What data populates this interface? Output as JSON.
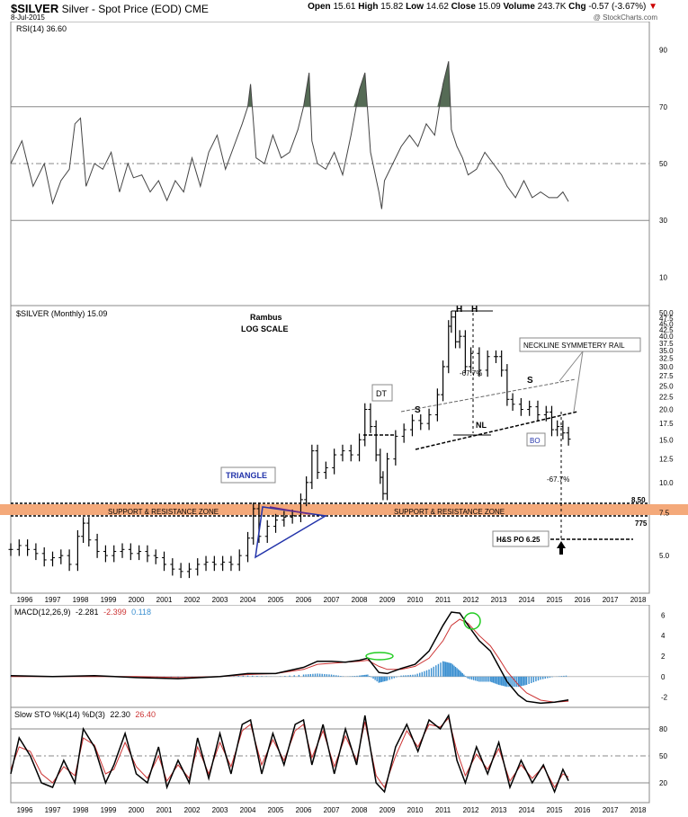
{
  "header": {
    "symbol": "$SILVER",
    "description": "Silver - Spot Price (EOD)",
    "exchange": "CME",
    "date": "8-Jul-2015",
    "open_label": "Open",
    "open": "15.61",
    "high_label": "High",
    "high": "15.82",
    "low_label": "Low",
    "low": "14.62",
    "close_label": "Close",
    "close": "15.09",
    "volume_label": "Volume",
    "volume": "243.7K",
    "chg_label": "Chg",
    "chg": "-0.57 (-3.67%)",
    "chg_arrow": "▼",
    "credit": "@ StockCharts.com"
  },
  "chart_data": [
    {
      "type": "line",
      "title": "RSI(14) 36.60",
      "ylim": [
        0,
        100
      ],
      "yticks": [
        10,
        30,
        50,
        70,
        90
      ],
      "reference_lines": [
        30,
        50,
        70
      ],
      "overbought_fill_color": "#556b55",
      "x": [
        1995.5,
        1995.9,
        1996.3,
        1996.7,
        1997.0,
        1997.3,
        1997.6,
        1997.8,
        1998.0,
        1998.2,
        1998.5,
        1998.8,
        1999.1,
        1999.4,
        1999.7,
        1999.9,
        2000.2,
        2000.5,
        2000.8,
        2001.1,
        2001.4,
        2001.7,
        2002.0,
        2002.3,
        2002.6,
        2002.9,
        2003.2,
        2003.5,
        2003.8,
        2004.0,
        2004.1,
        2004.3,
        2004.6,
        2004.9,
        2005.2,
        2005.5,
        2005.8,
        2006.0,
        2006.2,
        2006.3,
        2006.5,
        2006.8,
        2007.1,
        2007.4,
        2007.7,
        2008.0,
        2008.2,
        2008.4,
        2008.7,
        2008.8,
        2008.9,
        2009.2,
        2009.5,
        2009.8,
        2010.1,
        2010.4,
        2010.7,
        2011.0,
        2011.2,
        2011.3,
        2011.5,
        2011.7,
        2011.9,
        2012.2,
        2012.5,
        2012.8,
        2013.1,
        2013.3,
        2013.6,
        2013.9,
        2014.2,
        2014.5,
        2014.8,
        2015.1,
        2015.3,
        2015.5
      ],
      "values": [
        50,
        58,
        42,
        50,
        36,
        44,
        48,
        64,
        66,
        42,
        50,
        48,
        54,
        40,
        50,
        45,
        46,
        40,
        44,
        37,
        44,
        40,
        52,
        42,
        54,
        60,
        48,
        56,
        64,
        70,
        78,
        52,
        50,
        60,
        52,
        54,
        62,
        70,
        82,
        58,
        50,
        48,
        54,
        46,
        60,
        76,
        82,
        54,
        40,
        34,
        44,
        50,
        56,
        60,
        56,
        64,
        60,
        78,
        86,
        62,
        56,
        52,
        46,
        48,
        54,
        50,
        46,
        42,
        38,
        44,
        38,
        40,
        38,
        38,
        40,
        36.6
      ]
    },
    {
      "type": "line",
      "title": "$SILVER (Monthly) 15.09",
      "scale": "log",
      "ylim": [
        3.5,
        50
      ],
      "yticks": [
        5.0,
        7.5,
        10.0,
        12.5,
        15.0,
        17.5,
        20.0,
        22.5,
        25.0,
        27.5,
        30.0,
        32.5,
        35.0,
        37.5,
        40.0,
        42.5,
        45.0,
        47.5,
        50.0
      ],
      "xticks": [
        1996,
        1997,
        1998,
        1999,
        2000,
        2001,
        2002,
        2003,
        2004,
        2005,
        2006,
        2007,
        2008,
        2009,
        2010,
        2011,
        2012,
        2013,
        2014,
        2015,
        2016,
        2017,
        2018
      ],
      "x": [
        1995.5,
        1995.8,
        1996.1,
        1996.4,
        1996.7,
        1997.0,
        1997.3,
        1997.6,
        1997.9,
        1998.1,
        1998.3,
        1998.6,
        1998.9,
        1999.2,
        1999.5,
        1999.8,
        2000.1,
        2000.4,
        2000.7,
        2001.0,
        2001.3,
        2001.6,
        2001.9,
        2002.2,
        2002.5,
        2002.8,
        2003.1,
        2003.4,
        2003.7,
        2004.0,
        2004.2,
        2004.4,
        2004.7,
        2005.0,
        2005.3,
        2005.6,
        2005.9,
        2006.1,
        2006.3,
        2006.5,
        2006.8,
        2007.1,
        2007.4,
        2007.7,
        2008.0,
        2008.2,
        2008.4,
        2008.6,
        2008.75,
        2008.85,
        2009.0,
        2009.3,
        2009.6,
        2009.9,
        2010.2,
        2010.5,
        2010.8,
        2011.0,
        2011.2,
        2011.3,
        2011.45,
        2011.6,
        2011.8,
        2012.0,
        2012.3,
        2012.6,
        2012.9,
        2013.1,
        2013.3,
        2013.5,
        2013.8,
        2014.1,
        2014.4,
        2014.7,
        2014.9,
        2015.1,
        2015.3,
        2015.5
      ],
      "values": [
        5.3,
        5.5,
        5.3,
        5.1,
        4.8,
        4.9,
        5.0,
        4.6,
        6.0,
        6.8,
        5.8,
        5.2,
        5.0,
        5.2,
        5.3,
        5.1,
        5.2,
        5.0,
        4.9,
        4.6,
        4.4,
        4.3,
        4.4,
        4.6,
        4.7,
        4.6,
        4.7,
        4.6,
        5.0,
        5.9,
        7.8,
        6.0,
        6.6,
        7.0,
        7.2,
        7.3,
        8.5,
        10.0,
        13.5,
        11.0,
        11.5,
        13.0,
        13.5,
        13.0,
        15.0,
        20.0,
        17.0,
        13.0,
        10.5,
        9.0,
        12.5,
        15.5,
        16.5,
        18.0,
        17.5,
        19.0,
        23.0,
        30.0,
        44.0,
        48.0,
        38.0,
        40.0,
        30.0,
        34.0,
        29.0,
        33.0,
        33.0,
        29.0,
        22.0,
        21.0,
        20.0,
        20.5,
        19.0,
        19.5,
        16.5,
        17.0,
        16.0,
        15.09
      ],
      "annotations": {
        "title": "Rambus",
        "subtitle": "LOG SCALE",
        "triangle": "TRIANGLE",
        "zone_left": "SUPPORT & RESISTANCE ZONE",
        "zone_right": "SUPPORT & RESISTANCE ZONE",
        "level_upper": "8.50",
        "level_lower": "775",
        "dt": "DT",
        "s_left": "S",
        "s_right": "S",
        "h_left": "H",
        "h_right": "H",
        "nl": "NL",
        "bo": "BO",
        "pct_top": "-67.7%",
        "pct_bottom": "-67.7%",
        "neckline_rail": "NECKLINE SYMMETERY RAIL",
        "po": "H&S PO 6.25"
      },
      "zone_color": "#f4a97a",
      "triangle_color": "#2233aa"
    },
    {
      "type": "line",
      "title": "MACD(12,26,9)",
      "legend": [
        "-2.281",
        "-2.399",
        "0.118"
      ],
      "ylim": [
        -3,
        7
      ],
      "yticks": [
        -2,
        0,
        2,
        4,
        6
      ],
      "colors": {
        "macd": "#000000",
        "signal": "#cc3333",
        "hist": "#3a8fd0",
        "highlight": "#22cc22"
      },
      "x": [
        1995.5,
        1997,
        1998.5,
        2000,
        2001.5,
        2003,
        2004,
        2005,
        2006,
        2006.5,
        2007,
        2007.5,
        2008,
        2008.3,
        2008.7,
        2009,
        2009.5,
        2010,
        2010.5,
        2011,
        2011.3,
        2011.6,
        2011.9,
        2012.3,
        2012.7,
        2013,
        2013.3,
        2013.7,
        2014,
        2014.5,
        2015,
        2015.5
      ],
      "macd": [
        0.1,
        0.0,
        0.1,
        -0.1,
        -0.2,
        0.0,
        0.3,
        0.3,
        0.9,
        1.5,
        1.5,
        1.4,
        1.6,
        1.8,
        0.4,
        0.3,
        0.8,
        1.2,
        2.5,
        5.0,
        6.3,
        6.2,
        5.0,
        3.5,
        2.5,
        1.0,
        -0.5,
        -1.8,
        -2.4,
        -2.6,
        -2.5,
        -2.281
      ],
      "signal": [
        0.0,
        0.0,
        0.0,
        0.0,
        -0.1,
        0.0,
        0.2,
        0.3,
        0.7,
        1.2,
        1.3,
        1.4,
        1.5,
        1.6,
        1.0,
        0.7,
        0.7,
        1.0,
        1.8,
        3.5,
        5.0,
        5.6,
        5.2,
        4.0,
        3.0,
        1.8,
        0.5,
        -0.8,
        -1.6,
        -2.3,
        -2.5,
        -2.399
      ]
    },
    {
      "type": "line",
      "title": "Slow STO %K(14) %D(3)",
      "legend": [
        "22.30",
        "26.40"
      ],
      "ylim": [
        0,
        100
      ],
      "yticks": [
        20,
        50,
        80
      ],
      "xticks": [
        1996,
        1997,
        1998,
        1999,
        2000,
        2001,
        2002,
        2003,
        2004,
        2005,
        2006,
        2007,
        2008,
        2009,
        2010,
        2011,
        2012,
        2013,
        2014,
        2015,
        2016,
        2017,
        2018
      ],
      "colors": {
        "k": "#000000",
        "d": "#cc3333"
      },
      "x": [
        1995.5,
        1995.8,
        1996.2,
        1996.6,
        1997.0,
        1997.4,
        1997.8,
        1998.1,
        1998.5,
        1998.9,
        1999.2,
        1999.6,
        2000.0,
        2000.4,
        2000.8,
        2001.1,
        2001.5,
        2001.9,
        2002.2,
        2002.6,
        2003.0,
        2003.4,
        2003.8,
        2004.1,
        2004.5,
        2004.9,
        2005.3,
        2005.7,
        2006.0,
        2006.3,
        2006.7,
        2007.1,
        2007.5,
        2007.9,
        2008.2,
        2008.6,
        2008.9,
        2009.3,
        2009.7,
        2010.1,
        2010.5,
        2010.9,
        2011.2,
        2011.5,
        2011.8,
        2012.2,
        2012.6,
        2013.0,
        2013.4,
        2013.8,
        2014.2,
        2014.6,
        2015.0,
        2015.3,
        2015.5
      ],
      "k": [
        30,
        70,
        50,
        20,
        15,
        45,
        20,
        80,
        60,
        20,
        40,
        75,
        30,
        20,
        60,
        15,
        45,
        20,
        70,
        25,
        75,
        30,
        85,
        90,
        30,
        75,
        40,
        85,
        90,
        40,
        85,
        30,
        80,
        40,
        95,
        20,
        10,
        60,
        85,
        55,
        90,
        80,
        95,
        45,
        20,
        60,
        30,
        65,
        15,
        45,
        20,
        40,
        10,
        35,
        22.3
      ],
      "d": [
        35,
        60,
        55,
        30,
        20,
        38,
        28,
        70,
        62,
        30,
        35,
        65,
        38,
        25,
        50,
        22,
        40,
        25,
        60,
        30,
        65,
        38,
        78,
        85,
        40,
        68,
        45,
        78,
        85,
        48,
        78,
        38,
        72,
        45,
        88,
        28,
        15,
        50,
        78,
        60,
        85,
        82,
        92,
        55,
        28,
        52,
        35,
        58,
        22,
        40,
        25,
        38,
        15,
        30,
        26.4
      ]
    }
  ]
}
